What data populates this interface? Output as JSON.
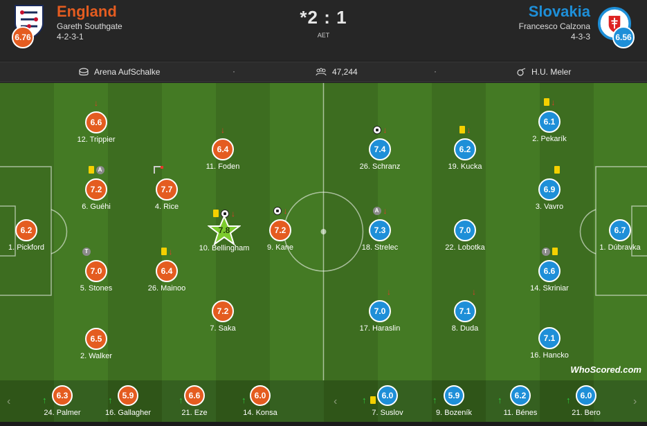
{
  "home": {
    "name": "England",
    "coach": "Gareth Southgate",
    "formation": "4-2-3-1",
    "rating": "6.76",
    "color": "#e45c20"
  },
  "away": {
    "name": "Slovakia",
    "coach": "Francesco Calzona",
    "formation": "4-3-3",
    "rating": "6.56",
    "color": "#1e8fd8"
  },
  "score": "*2 : 1",
  "aet": "AET",
  "info": {
    "venue": "Arena AufSchalke",
    "attendance": "47,244",
    "referee": "H.U. Meler",
    "separator": "·"
  },
  "home_players": [
    {
      "label": "12. Trippier",
      "rating": "6.6"
    },
    {
      "label": "11. Foden",
      "rating": "6.4"
    },
    {
      "label": "6. Guéhi",
      "rating": "7.2"
    },
    {
      "label": "4. Rice",
      "rating": "7.7"
    },
    {
      "label": "1. Pickford",
      "rating": "6.2"
    },
    {
      "label": "10. Bellingham",
      "rating": "7.8"
    },
    {
      "label": "9. Kane",
      "rating": "7.2"
    },
    {
      "label": "5. Stones",
      "rating": "7.0"
    },
    {
      "label": "26. Mainoo",
      "rating": "6.4"
    },
    {
      "label": "7. Saka",
      "rating": "7.2"
    },
    {
      "label": "2. Walker",
      "rating": "6.5"
    }
  ],
  "away_players": [
    {
      "label": "26. Schranz",
      "rating": "7.4"
    },
    {
      "label": "19. Kucka",
      "rating": "6.2"
    },
    {
      "label": "2. Pekarík",
      "rating": "6.1"
    },
    {
      "label": "3. Vavro",
      "rating": "6.9"
    },
    {
      "label": "18. Strelec",
      "rating": "7.3"
    },
    {
      "label": "22. Lobotka",
      "rating": "7.0"
    },
    {
      "label": "1. Dúbravka",
      "rating": "6.7"
    },
    {
      "label": "14. Skriniar",
      "rating": "6.6"
    },
    {
      "label": "17. Haraslin",
      "rating": "7.0"
    },
    {
      "label": "8. Duda",
      "rating": "7.1"
    },
    {
      "label": "16. Hancko",
      "rating": "7.1"
    }
  ],
  "home_subs": [
    {
      "label": "24. Palmer",
      "rating": "6.3"
    },
    {
      "label": "16. Gallagher",
      "rating": "5.9"
    },
    {
      "label": "21. Eze",
      "rating": "6.6"
    },
    {
      "label": "14. Konsa",
      "rating": "6.0"
    }
  ],
  "away_subs": [
    {
      "label": "7. Suslov",
      "rating": "6.0"
    },
    {
      "label": "9. Bozeník",
      "rating": "5.9"
    },
    {
      "label": "11. Bénes",
      "rating": "6.2"
    },
    {
      "label": "21. Bero",
      "rating": "6.0"
    }
  ],
  "watermark": "WhoScored.com",
  "icons": {
    "arrow_down": "↓",
    "arrow_up": "↑",
    "captain": "A",
    "t_badge": "T",
    "nav_left": "‹",
    "nav_right": "›"
  }
}
